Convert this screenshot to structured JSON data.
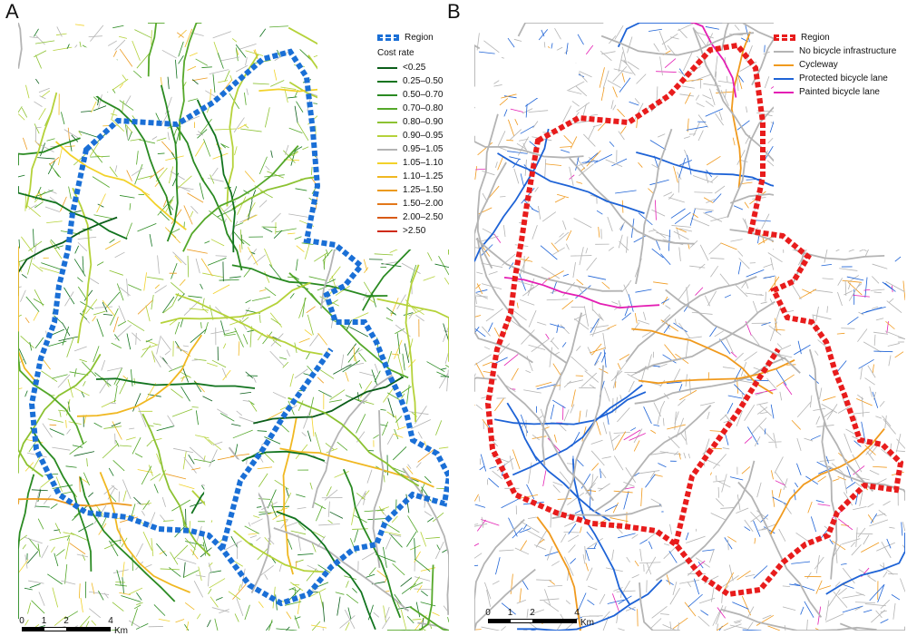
{
  "panel_a": {
    "letter": "A",
    "legend": {
      "region_label": "Region",
      "region_color": "#1a6fd6",
      "header": "Cost rate",
      "items": [
        {
          "label": "<0.25",
          "color": "#0b5e1a"
        },
        {
          "label": "0.25–0.50",
          "color": "#12741f"
        },
        {
          "label": "0.50–0.70",
          "color": "#2a8a22"
        },
        {
          "label": "0.70–0.80",
          "color": "#55a82a"
        },
        {
          "label": "0.80–0.90",
          "color": "#8cc232"
        },
        {
          "label": "0.90–0.95",
          "color": "#b5d23a"
        },
        {
          "label": "0.95–1.05",
          "color": "#b4b4b4"
        },
        {
          "label": "1.05–1.10",
          "color": "#f2d22a"
        },
        {
          "label": "1.10–1.25",
          "color": "#f0b822"
        },
        {
          "label": "1.25–1.50",
          "color": "#ec9a1e"
        },
        {
          "label": "1.50–2.00",
          "color": "#e3781a"
        },
        {
          "label": "2.00–2.50",
          "color": "#d85a16"
        },
        {
          "label": ">2.50",
          "color": "#cf2a12"
        }
      ]
    },
    "scale": {
      "ticks": [
        "0",
        "1",
        "2",
        "4"
      ],
      "unit": "Km"
    }
  },
  "panel_b": {
    "letter": "B",
    "legend": {
      "region_label": "Region",
      "region_color": "#e81c1c",
      "items": [
        {
          "label": "No bicycle infrastructure",
          "color": "#b4b4b4"
        },
        {
          "label": "Cycleway",
          "color": "#f09a1e"
        },
        {
          "label": "Protected bicycle lane",
          "color": "#1e63d6"
        },
        {
          "label": "Painted bicycle lane",
          "color": "#e41fb4"
        }
      ]
    },
    "scale": {
      "ticks": [
        "0",
        "1",
        "2",
        "4"
      ],
      "unit": "Km"
    }
  }
}
